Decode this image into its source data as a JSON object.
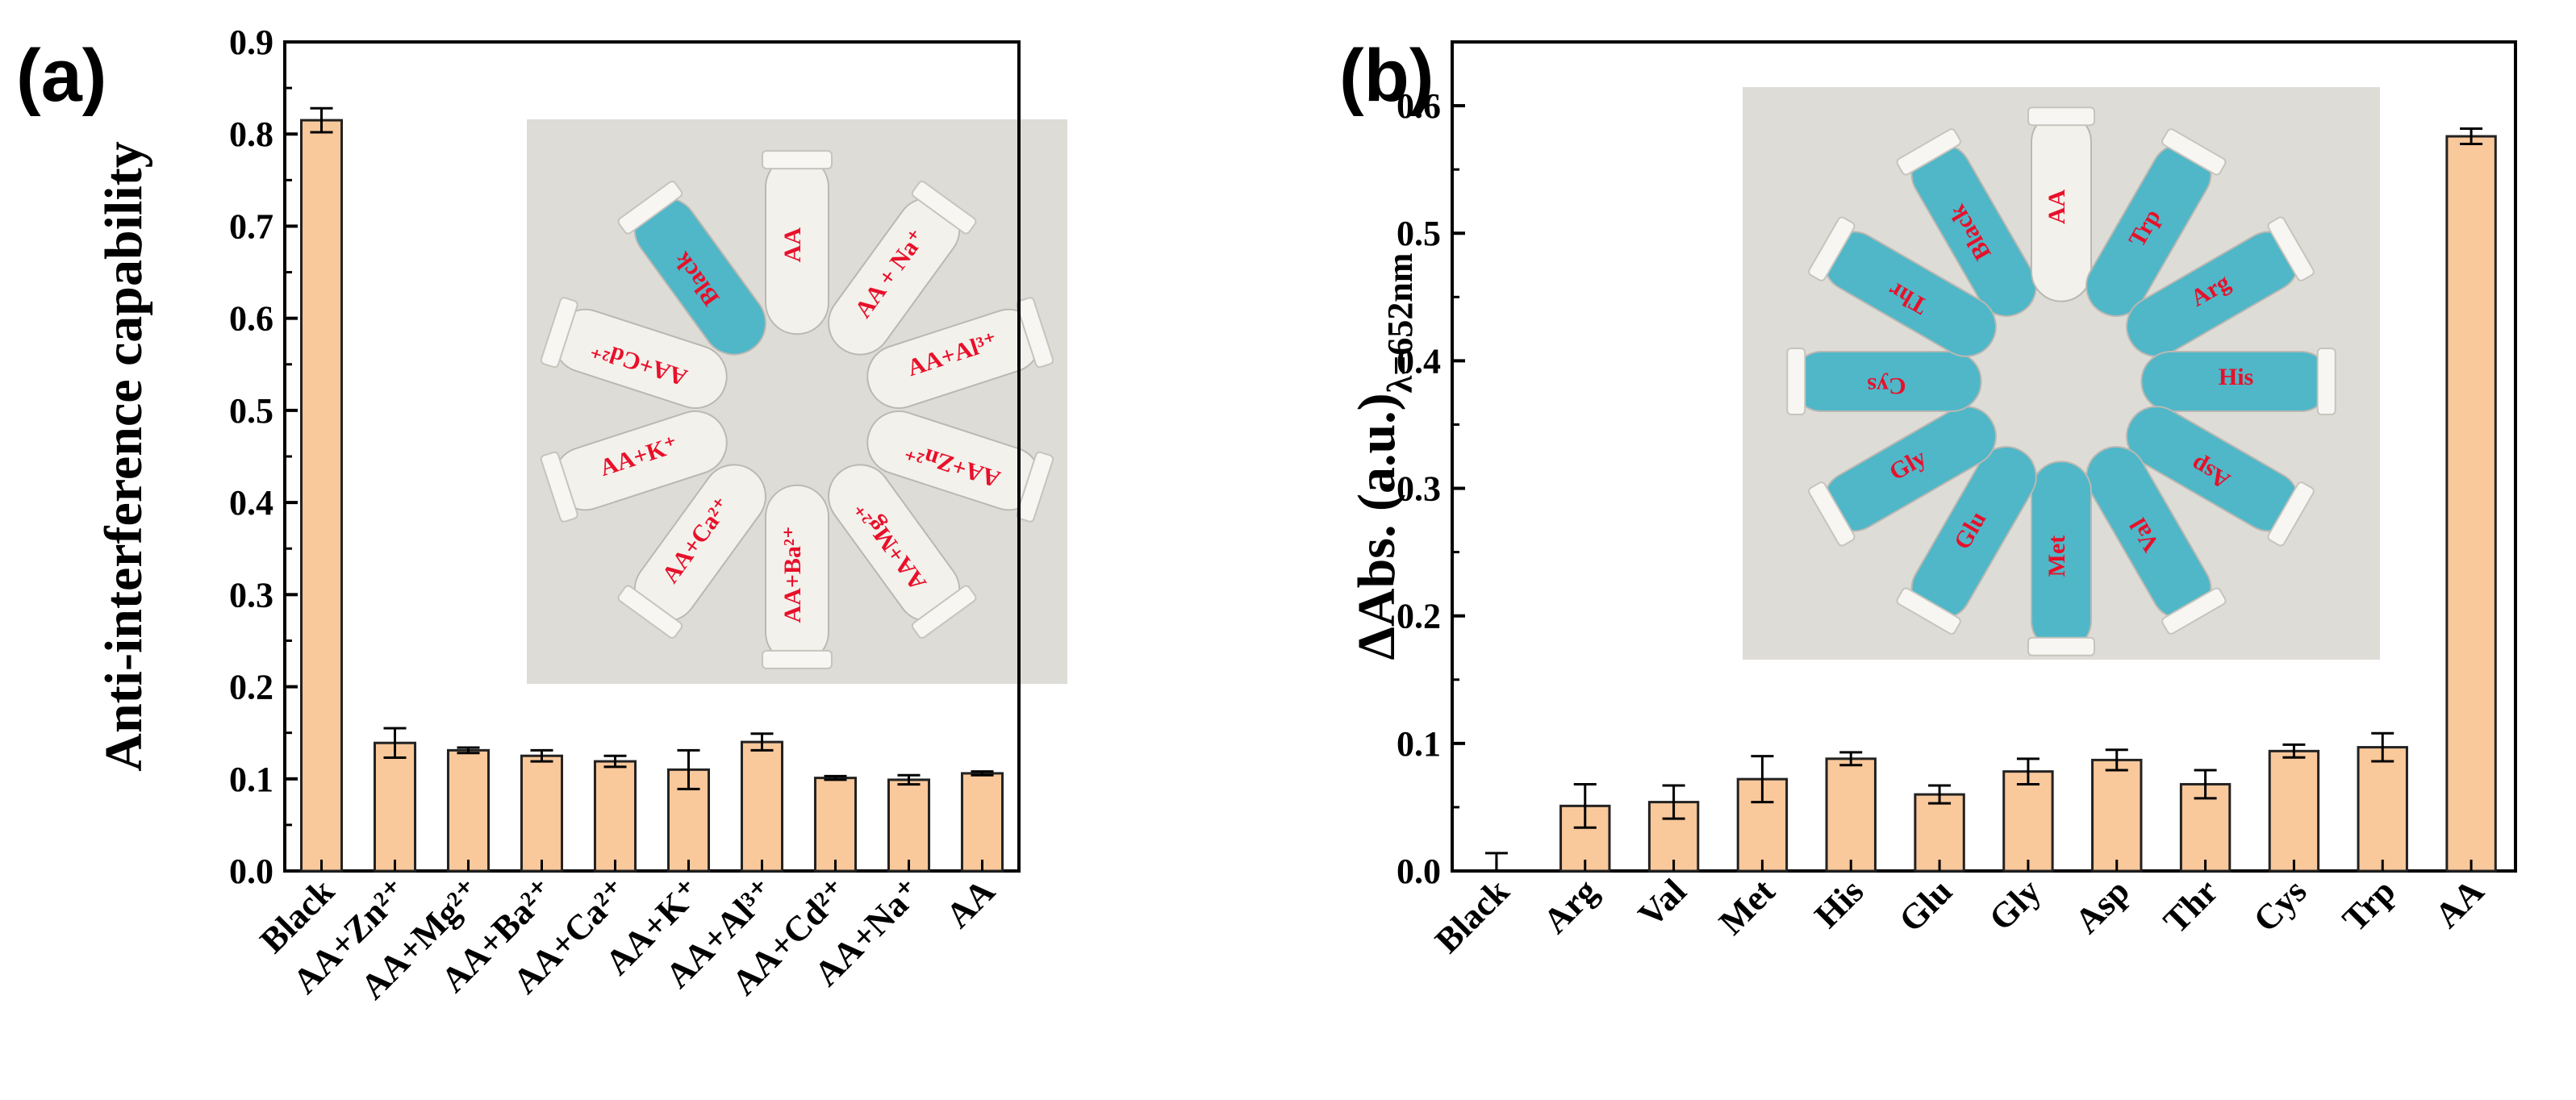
{
  "colors": {
    "bar_fill": "#f9c89b",
    "bar_stroke": "#222222",
    "photo_background": "#dedcd6",
    "tube_clear": "#f3f1ec",
    "tube_blue": "#4fb7c8",
    "photo_text": "#e8102a"
  },
  "chart_data": [
    {
      "panel_label": "(a)",
      "type": "bar",
      "ylabel": "Anti-interference capability",
      "xlabel": "",
      "ylim": [
        0.0,
        0.9
      ],
      "yticks": [
        "0.0",
        "0.1",
        "0.2",
        "0.3",
        "0.4",
        "0.5",
        "0.6",
        "0.7",
        "0.8",
        "0.9"
      ],
      "categories": [
        "Black",
        "AA+Zn²⁺",
        "AA+Mg²⁺",
        "AA+Ba²⁺",
        "AA+Ca²⁺",
        "AA+K⁺",
        "AA+Al³⁺",
        "AA+Cd²⁺",
        "AA+Na⁺",
        "AA"
      ],
      "values": [
        0.815,
        0.139,
        0.131,
        0.125,
        0.119,
        0.11,
        0.14,
        0.101,
        0.099,
        0.106
      ],
      "errors": [
        0.013,
        0.016,
        0.003,
        0.006,
        0.006,
        0.021,
        0.009,
        0.002,
        0.005,
        0.002
      ],
      "grid": false,
      "inset_photo": {
        "description_labels": [
          "Black",
          "AA",
          "AA + Na⁺",
          "AA+Al³⁺",
          "AA+Zn²⁺",
          "AA+Mg²⁺",
          "AA+Ba²⁺",
          "AA+Ca²⁺",
          "AA+K⁺",
          "AA+Cd²⁺"
        ],
        "blue_tubes": [
          "Black"
        ]
      }
    },
    {
      "panel_label": "(b)",
      "type": "bar",
      "ylabel": "ΔAbs. (a.u.)",
      "ylabel_subscript": "λ=652nm",
      "xlabel": "",
      "ylim": [
        0.0,
        0.65
      ],
      "yticks": [
        "0.0",
        "0.1",
        "0.2",
        "0.3",
        "0.4",
        "0.5",
        "0.6"
      ],
      "categories": [
        "Black",
        "Arg",
        "Val",
        "Met",
        "His",
        "Glu",
        "Gly",
        "Asp",
        "Thr",
        "Cys",
        "Trp",
        "AA"
      ],
      "values": [
        0.0,
        0.051,
        0.054,
        0.072,
        0.088,
        0.06,
        0.078,
        0.087,
        0.068,
        0.094,
        0.097,
        0.576
      ],
      "errors": [
        0.014,
        0.017,
        0.013,
        0.018,
        0.005,
        0.007,
        0.01,
        0.008,
        0.011,
        0.005,
        0.011,
        0.006
      ],
      "grid": false,
      "inset_photo": {
        "description_labels": [
          "Black",
          "AA",
          "Trp",
          "Arg",
          "His",
          "Asp",
          "Val",
          "Met",
          "Glu",
          "Gly",
          "Cys",
          "Thr"
        ],
        "blue_tubes": [
          "Black",
          "Trp",
          "Arg",
          "His",
          "Asp",
          "Val",
          "Met",
          "Glu",
          "Gly",
          "Cys",
          "Thr"
        ]
      }
    }
  ]
}
